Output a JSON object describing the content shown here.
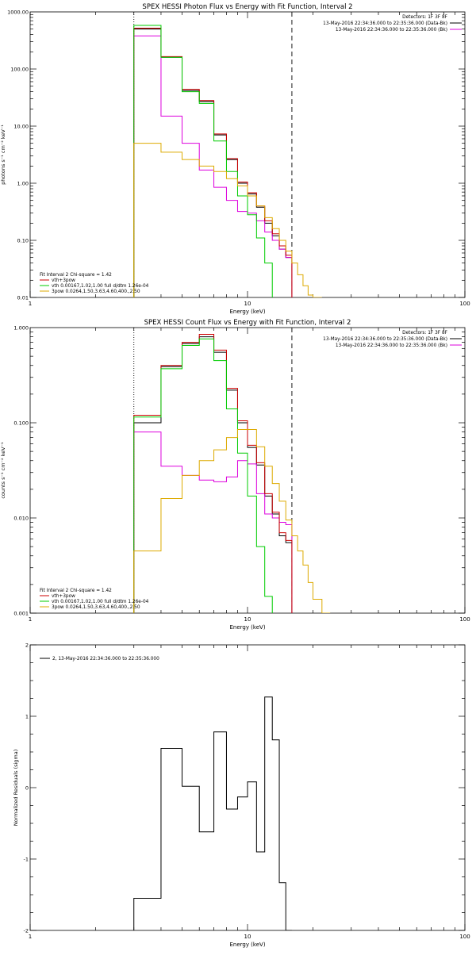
{
  "chart_data": [
    {
      "type": "line",
      "step": true,
      "title": "SPEX HESSI Photon Flux vs Energy with Fit Function, Interval 2",
      "xlabel": "Energy (keV)",
      "ylabel": "photons s⁻¹ cm⁻² keV⁻¹",
      "xscale": "log",
      "yscale": "log",
      "xlim": [
        1,
        100
      ],
      "ylim": [
        0.01,
        1000
      ],
      "xticks": [
        1,
        10,
        100
      ],
      "xtick_labels": [
        "1",
        "10",
        "100"
      ],
      "yticks": [
        0.01,
        0.1,
        1,
        10,
        100,
        1000
      ],
      "ytick_labels": [
        "0.01",
        "0.10",
        "1.00",
        "10.00",
        "100.00",
        "1000.00"
      ],
      "vlines": [
        {
          "x": 3.0,
          "style": "dotted",
          "color": "#000000"
        },
        {
          "x": 16.0,
          "style": "dashed",
          "color": "#000000"
        }
      ],
      "legend_top_right": [
        {
          "text": "Detectors: 1F 3F 8F",
          "color": null
        },
        {
          "text": "13-May-2016 22:34:36.000 to 22:35:36.000 (Data-Bk)",
          "color": "#000000"
        },
        {
          "text": "13-May-2016 22:34:36.000 to 22:35:36.000 (Bk)",
          "color": "#dd00dd"
        }
      ],
      "legend_bottom_left": [
        {
          "text": "Fit Interval 2   Chi-square = 1.42",
          "color": null
        },
        {
          "text": "vth+3pow",
          "color": "#cc0000"
        },
        {
          "text": "vth 0.00167,1.02,1.00  full d/dtm 1.26e-04",
          "color": "#00cc00"
        },
        {
          "text": "3pow 0.0264,1.50,3.63,4.60,400.,2.50",
          "color": "#ddaa00"
        }
      ],
      "edges": [
        3,
        4,
        5,
        6,
        7,
        8,
        9,
        10,
        11,
        12,
        13,
        14,
        15,
        16,
        17,
        18,
        19,
        20,
        22,
        24,
        26
      ],
      "series": [
        {
          "name": "(Data-Bk)",
          "color": "#000000",
          "values": [
            500,
            160,
            42,
            27,
            7,
            2.6,
            1.0,
            0.65,
            0.38,
            0.2,
            0.12,
            0.07,
            0.05,
            null,
            null,
            null,
            null,
            null,
            null,
            null
          ]
        },
        {
          "name": "(Bk)",
          "color": "#dd00dd",
          "values": [
            380,
            15,
            5,
            1.7,
            0.85,
            0.5,
            0.32,
            0.3,
            0.22,
            0.14,
            0.1,
            0.07,
            0.05,
            null,
            null,
            null,
            null,
            null,
            null,
            null
          ]
        },
        {
          "name": "vth+3pow",
          "color": "#cc0000",
          "values": [
            520,
            165,
            44,
            28,
            7.3,
            2.7,
            1.05,
            0.68,
            0.4,
            0.22,
            0.13,
            0.08,
            0.055,
            null,
            null,
            null,
            null,
            null,
            null,
            null
          ]
        },
        {
          "name": "vth",
          "color": "#00cc00",
          "values": [
            580,
            160,
            40,
            25,
            5.5,
            1.6,
            0.6,
            0.28,
            0.11,
            0.04,
            null,
            null,
            null,
            null,
            null,
            null,
            null,
            null,
            null,
            null
          ]
        },
        {
          "name": "3pow",
          "color": "#ddaa00",
          "values": [
            5,
            3.5,
            2.6,
            2,
            1.6,
            1.2,
            0.9,
            0.6,
            0.4,
            0.25,
            0.16,
            0.1,
            0.065,
            0.04,
            0.025,
            0.016,
            0.011,
            0.01,
            null,
            null
          ]
        }
      ]
    },
    {
      "type": "line",
      "step": true,
      "title": "SPEX HESSI Count Flux vs Energy with Fit Function, Interval 2",
      "xlabel": "Energy (keV)",
      "ylabel": "counts s⁻¹ cm⁻² keV⁻¹",
      "xscale": "log",
      "yscale": "log",
      "xlim": [
        1,
        100
      ],
      "ylim": [
        0.001,
        1
      ],
      "xticks": [
        1,
        10,
        100
      ],
      "xtick_labels": [
        "1",
        "10",
        "100"
      ],
      "yticks": [
        0.001,
        0.01,
        0.1,
        1
      ],
      "ytick_labels": [
        "0.001",
        "0.010",
        "0.100",
        "1.000"
      ],
      "vlines": [
        {
          "x": 3.0,
          "style": "dotted",
          "color": "#000000"
        },
        {
          "x": 16.0,
          "style": "dashed",
          "color": "#000000"
        }
      ],
      "legend_top_right": [
        {
          "text": "Detectors: 1F 3F 8F",
          "color": null
        },
        {
          "text": "13-May-2016 22:34:36.000 to 22:35:36.000 (Data-Bk)",
          "color": "#000000"
        },
        {
          "text": "13-May-2016 22:34:36.000 to 22:35:36.000 (Bk)",
          "color": "#dd00dd"
        }
      ],
      "legend_bottom_left": [
        {
          "text": "Fit Interval 2   Chi-square = 1.42",
          "color": null
        },
        {
          "text": "vth+3pow",
          "color": "#cc0000"
        },
        {
          "text": "vth 0.00167,1.02,1.00  full d/dtm 1.26e-04",
          "color": "#00cc00"
        },
        {
          "text": "3pow 0.0264,1.50,3.63,4.60,400.,2.50",
          "color": "#ddaa00"
        }
      ],
      "edges": [
        3,
        4,
        5,
        6,
        7,
        8,
        9,
        10,
        11,
        12,
        13,
        14,
        15,
        16,
        17,
        18,
        19,
        20,
        22,
        24,
        26
      ],
      "series": [
        {
          "name": "(Data-Bk)",
          "color": "#000000",
          "values": [
            0.1,
            0.39,
            0.68,
            0.8,
            0.55,
            0.22,
            0.1,
            0.055,
            0.036,
            0.017,
            0.011,
            0.0065,
            0.0055,
            null,
            null,
            null,
            null,
            null,
            null,
            null
          ]
        },
        {
          "name": "(Bk)",
          "color": "#dd00dd",
          "values": [
            0.08,
            0.035,
            0.028,
            0.025,
            0.024,
            0.027,
            0.04,
            0.037,
            0.018,
            0.011,
            0.01,
            0.009,
            0.0085,
            null,
            null,
            null,
            null,
            null,
            null,
            null
          ]
        },
        {
          "name": "vth+3pow",
          "color": "#cc0000",
          "values": [
            0.12,
            0.4,
            0.7,
            0.85,
            0.58,
            0.23,
            0.105,
            0.058,
            0.038,
            0.018,
            0.0115,
            0.007,
            0.0058,
            null,
            null,
            null,
            null,
            null,
            null,
            null
          ]
        },
        {
          "name": "vth",
          "color": "#00cc00",
          "values": [
            0.115,
            0.37,
            0.65,
            0.76,
            0.45,
            0.14,
            0.048,
            0.017,
            0.005,
            0.0015,
            null,
            null,
            null,
            null,
            null,
            null,
            null,
            null,
            null,
            null
          ]
        },
        {
          "name": "3pow",
          "color": "#ddaa00",
          "values": [
            0.0045,
            0.016,
            0.028,
            0.04,
            0.052,
            0.07,
            0.085,
            0.085,
            0.056,
            0.035,
            0.023,
            0.015,
            0.0095,
            0.0065,
            0.0045,
            0.0032,
            0.0021,
            0.0014,
            0.001,
            null
          ]
        }
      ]
    },
    {
      "type": "line",
      "step": true,
      "title": "",
      "xlabel": "Energy (keV)",
      "ylabel": "Normalized Residuals (sigma)",
      "xscale": "log",
      "yscale": "linear",
      "xlim": [
        1,
        100
      ],
      "ylim": [
        -2,
        2
      ],
      "xticks": [
        1,
        10,
        100
      ],
      "xtick_labels": [
        "1",
        "10",
        "100"
      ],
      "yticks": [
        -2,
        -1,
        0,
        1,
        2
      ],
      "ytick_labels": [
        "-2",
        "-1",
        "0",
        "1",
        "2"
      ],
      "legend_top_left": [
        {
          "text": "2, 13-May-2016 22:34:36.000 to 22:35:36.000",
          "color": "#000000"
        }
      ],
      "edges": [
        3,
        4,
        5,
        6,
        7,
        8,
        9,
        10,
        11,
        12,
        13,
        14,
        15,
        16
      ],
      "series": [
        {
          "name": "2, 13-May-2016 22:34:36.000 to 22:35:36.000",
          "color": "#000000",
          "values": [
            -1.55,
            0.55,
            0.02,
            -0.62,
            0.78,
            -0.3,
            -0.13,
            0.08,
            -0.9,
            1.27,
            0.67,
            -1.33,
            -2.0
          ]
        }
      ]
    }
  ]
}
